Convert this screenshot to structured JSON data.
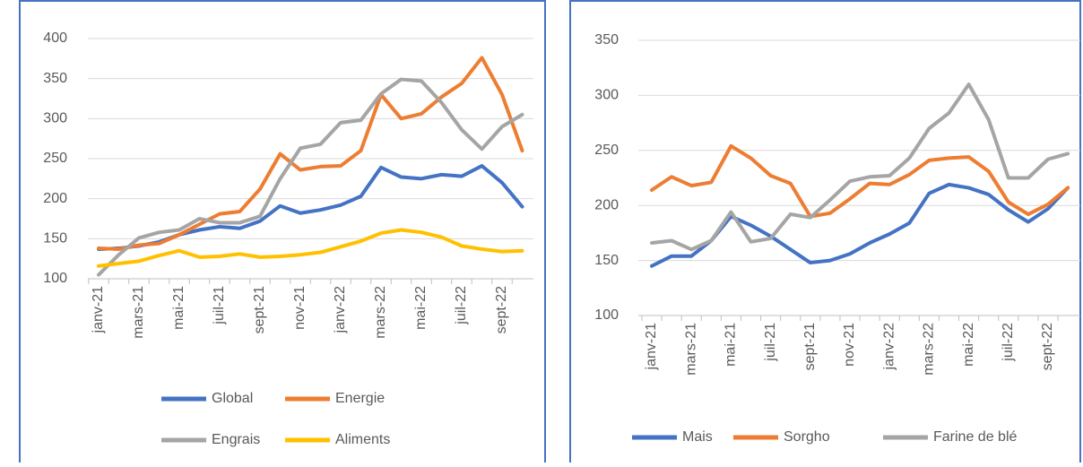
{
  "chart_data": [
    {
      "type": "line",
      "categories": [
        "janv-21",
        null,
        "mars-21",
        null,
        "mai-21",
        null,
        "juil-21",
        null,
        "sept-21",
        null,
        "nov-21",
        null,
        "janv-22",
        null,
        "mars-22",
        null,
        "mai-22",
        null,
        "juil-22",
        null,
        "sept-22",
        null
      ],
      "series": [
        {
          "name": "Global",
          "color": "#4472c4",
          "values": [
            137,
            138,
            141,
            146,
            155,
            161,
            165,
            163,
            172,
            191,
            182,
            186,
            192,
            203,
            239,
            227,
            225,
            230,
            228,
            241,
            220,
            190
          ]
        },
        {
          "name": "Energie",
          "color": "#ed7d31",
          "values": [
            138,
            137,
            142,
            144,
            155,
            168,
            181,
            184,
            212,
            256,
            236,
            240,
            241,
            260,
            330,
            300,
            306,
            327,
            344,
            376,
            330,
            260
          ]
        },
        {
          "name": "Engrais",
          "color": "#a5a5a5",
          "values": [
            105,
            130,
            151,
            158,
            161,
            175,
            170,
            170,
            178,
            225,
            263,
            268,
            295,
            298,
            331,
            349,
            347,
            320,
            286,
            262,
            290,
            305
          ]
        },
        {
          "name": "Aliments",
          "color": "#ffc000",
          "values": [
            116,
            119,
            122,
            129,
            135,
            127,
            128,
            131,
            127,
            128,
            130,
            133,
            140,
            147,
            157,
            161,
            158,
            152,
            141,
            137,
            134,
            135
          ]
        }
      ],
      "ylim": [
        100,
        400
      ],
      "yticks": [
        100,
        150,
        200,
        250,
        300,
        350,
        400
      ],
      "grid": true
    },
    {
      "type": "line",
      "categories": [
        "janv-21",
        null,
        "mars-21",
        null,
        "mai-21",
        null,
        "juil-21",
        null,
        "sept-21",
        null,
        "nov-21",
        null,
        "janv-22",
        null,
        "mars-22",
        null,
        "mai-22",
        null,
        "juil-22",
        null,
        "sept-22",
        null
      ],
      "series": [
        {
          "name": "Mais",
          "color": "#4472c4",
          "values": [
            145,
            154,
            154,
            168,
            190,
            182,
            172,
            160,
            148,
            150,
            156,
            166,
            174,
            184,
            211,
            219,
            216,
            210,
            196,
            185,
            197,
            216
          ]
        },
        {
          "name": "Sorgho",
          "color": "#ed7d31",
          "values": [
            214,
            226,
            218,
            221,
            254,
            243,
            227,
            220,
            190,
            193,
            206,
            220,
            219,
            228,
            241,
            243,
            244,
            231,
            203,
            192,
            201,
            216
          ]
        },
        {
          "name": "Farine de blé",
          "color": "#a5a5a5",
          "values": [
            166,
            168,
            160,
            168,
            194,
            167,
            170,
            192,
            189,
            205,
            222,
            226,
            227,
            243,
            270,
            284,
            310,
            278,
            225,
            225,
            242,
            247
          ]
        }
      ],
      "ylim": [
        100,
        350
      ],
      "yticks": [
        100,
        150,
        200,
        250,
        300,
        350
      ],
      "grid": true
    }
  ]
}
